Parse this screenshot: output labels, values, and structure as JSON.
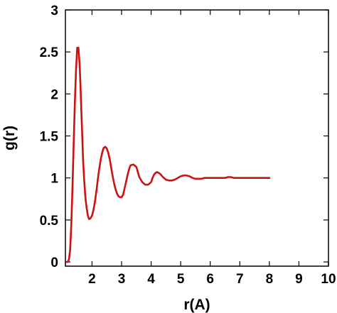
{
  "chart_data": {
    "type": "line",
    "title": "",
    "xlabel": "r(A)",
    "ylabel": "g(r)",
    "xlim": [
      1.1,
      10
    ],
    "ylim": [
      -0.05,
      3
    ],
    "xticks": [
      2,
      3,
      4,
      5,
      6,
      7,
      8,
      9,
      10
    ],
    "yticks": [
      0,
      0.5,
      1,
      1.5,
      2,
      2.5,
      3
    ],
    "ytick_labels": [
      "0",
      "0.5",
      "1",
      "1.5",
      "2",
      "2.5",
      "3"
    ],
    "grid": false,
    "legend": "none",
    "line_color": "#cc1111",
    "series": [
      {
        "x": [
          1.15,
          1.18,
          1.22,
          1.26,
          1.3,
          1.34,
          1.38,
          1.42,
          1.46,
          1.5,
          1.54,
          1.58,
          1.61,
          1.64,
          1.67,
          1.7,
          1.74,
          1.78,
          1.82,
          1.86,
          1.9,
          1.95,
          2.0,
          2.05,
          2.1,
          2.15,
          2.2,
          2.25,
          2.3,
          2.35,
          2.4,
          2.45,
          2.5,
          2.55,
          2.6,
          2.65,
          2.7,
          2.75,
          2.8,
          2.85,
          2.9,
          2.95,
          3.0,
          3.05,
          3.1,
          3.15,
          3.2,
          3.25,
          3.3,
          3.4,
          3.5,
          3.55,
          3.6,
          3.7,
          3.8,
          3.9,
          4.0,
          4.05,
          4.1,
          4.15,
          4.2,
          4.3,
          4.4,
          4.5,
          4.6,
          4.7,
          4.8,
          4.9,
          5.0,
          5.1,
          5.2,
          5.3,
          5.4,
          5.5,
          5.6,
          5.7,
          5.8,
          5.9,
          6.0,
          6.1,
          6.2,
          6.3,
          6.4,
          6.5,
          6.6,
          6.7,
          6.8,
          6.9,
          7.0,
          7.1,
          7.2,
          7.3,
          7.4,
          7.5,
          7.6,
          7.7,
          7.8,
          7.9,
          8.0
        ],
        "y": [
          0.0,
          0.0,
          0.03,
          0.15,
          0.45,
          0.9,
          1.4,
          1.9,
          2.3,
          2.55,
          2.55,
          2.35,
          2.1,
          1.8,
          1.5,
          1.2,
          0.95,
          0.75,
          0.64,
          0.55,
          0.51,
          0.52,
          0.55,
          0.62,
          0.72,
          0.85,
          0.99,
          1.12,
          1.23,
          1.31,
          1.36,
          1.37,
          1.35,
          1.3,
          1.22,
          1.12,
          1.02,
          0.93,
          0.86,
          0.81,
          0.78,
          0.77,
          0.77,
          0.8,
          0.87,
          0.95,
          1.03,
          1.1,
          1.15,
          1.16,
          1.13,
          1.07,
          1.01,
          0.95,
          0.92,
          0.92,
          0.95,
          1.0,
          1.04,
          1.06,
          1.07,
          1.05,
          1.01,
          0.98,
          0.97,
          0.97,
          0.98,
          1.0,
          1.02,
          1.03,
          1.03,
          1.02,
          1.0,
          0.99,
          0.99,
          0.99,
          1.0,
          1.0,
          1.0,
          1.0,
          1.0,
          1.0,
          1.0,
          1.0,
          1.01,
          1.01,
          1.0,
          1.0,
          1.0,
          1.0,
          1.0,
          1.0,
          1.0,
          1.0,
          1.0,
          1.0,
          1.0,
          1.0,
          1.0
        ]
      }
    ]
  }
}
